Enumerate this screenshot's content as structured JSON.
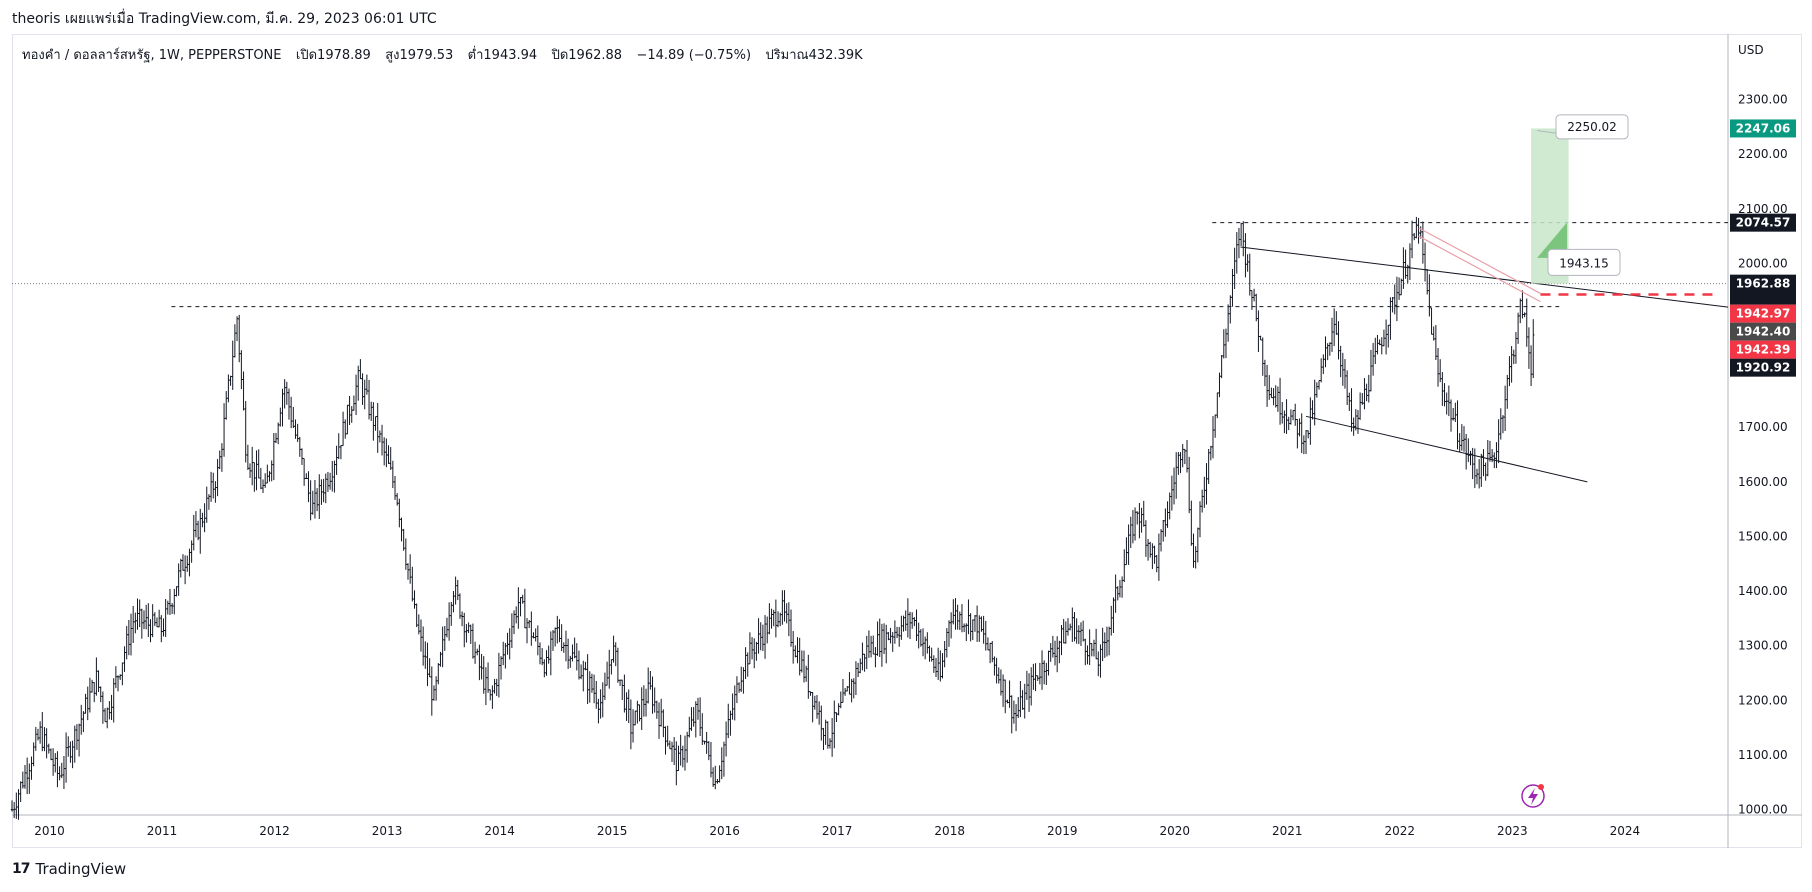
{
  "header": {
    "attribution": "theoris เผยแพร่เมื่อ TradingView.com, มี.ค. 29, 2023 06:01 UTC"
  },
  "legend": {
    "symbol": "ทองคำ / ดอลลาร์สหรัฐ, 1W, PEPPERSTONE",
    "open": "เปิด1978.89",
    "high": "สูง1979.53",
    "low": "ต่ำ1943.94",
    "close": "ปิด1962.88",
    "change": "−14.89 (−0.75%)",
    "volume": "ปริมาณ432.39K"
  },
  "footer": {
    "brand": "TradingView"
  },
  "colors": {
    "candle": "#131722",
    "target_box": "#c8e6c9",
    "resistance_line": "#131722",
    "red_dash": "#f23645",
    "green_tag": "#089981",
    "red_tag": "#f23645",
    "black_tag": "#131722",
    "gray_tag": "#4a4a4a"
  },
  "chart_data": {
    "type": "candlestick",
    "currency": "USD",
    "x_axis": {
      "type": "time",
      "range": [
        "2009-09",
        "2024-12"
      ],
      "ticks": [
        "2010",
        "2011",
        "2012",
        "2013",
        "2014",
        "2015",
        "2016",
        "2017",
        "2018",
        "2019",
        "2020",
        "2021",
        "2022",
        "2023",
        "2024"
      ]
    },
    "y_axis": {
      "range": [
        990,
        2420
      ],
      "ticks": [
        "1000.00",
        "1100.00",
        "1200.00",
        "1300.00",
        "1400.00",
        "1500.00",
        "1600.00",
        "1700.00",
        "1800.00",
        "1900.00",
        "2000.00",
        "2100.00",
        "2200.00",
        "2300.00"
      ]
    },
    "grid": false,
    "price_path": [
      [
        "2009-09",
        1000
      ],
      [
        "2009-12",
        1140
      ],
      [
        "2010-02",
        1060
      ],
      [
        "2010-06",
        1240
      ],
      [
        "2010-07",
        1170
      ],
      [
        "2010-10",
        1350
      ],
      [
        "2011-01",
        1330
      ],
      [
        "2011-03",
        1440
      ],
      [
        "2011-05",
        1520
      ],
      [
        "2011-07",
        1620
      ],
      [
        "2011-09",
        1900
      ],
      [
        "2011-10",
        1650
      ],
      [
        "2011-12",
        1580
      ],
      [
        "2012-02",
        1780
      ],
      [
        "2012-05",
        1550
      ],
      [
        "2012-07",
        1620
      ],
      [
        "2012-10",
        1790
      ],
      [
        "2012-12",
        1690
      ],
      [
        "2013-02",
        1580
      ],
      [
        "2013-04",
        1350
      ],
      [
        "2013-06",
        1200
      ],
      [
        "2013-08",
        1410
      ],
      [
        "2013-12",
        1200
      ],
      [
        "2014-03",
        1380
      ],
      [
        "2014-06",
        1260
      ],
      [
        "2014-07",
        1330
      ],
      [
        "2014-12",
        1190
      ],
      [
        "2015-01",
        1300
      ],
      [
        "2015-03",
        1150
      ],
      [
        "2015-05",
        1220
      ],
      [
        "2015-08",
        1080
      ],
      [
        "2015-10",
        1180
      ],
      [
        "2015-12",
        1050
      ],
      [
        "2016-03",
        1270
      ],
      [
        "2016-07",
        1370
      ],
      [
        "2016-12",
        1130
      ],
      [
        "2017-04",
        1290
      ],
      [
        "2017-09",
        1350
      ],
      [
        "2017-12",
        1240
      ],
      [
        "2018-01",
        1360
      ],
      [
        "2018-04",
        1340
      ],
      [
        "2018-08",
        1170
      ],
      [
        "2018-10",
        1240
      ],
      [
        "2019-02",
        1340
      ],
      [
        "2019-05",
        1270
      ],
      [
        "2019-09",
        1550
      ],
      [
        "2019-11",
        1450
      ],
      [
        "2020-02",
        1690
      ],
      [
        "2020-03",
        1450
      ],
      [
        "2020-08",
        2070
      ],
      [
        "2020-11",
        1770
      ],
      [
        "2021-03",
        1680
      ],
      [
        "2021-06",
        1900
      ],
      [
        "2021-08",
        1690
      ],
      [
        "2021-11",
        1860
      ],
      [
        "2022-03",
        2070
      ],
      [
        "2022-05",
        1800
      ],
      [
        "2022-07",
        1700
      ],
      [
        "2022-09",
        1620
      ],
      [
        "2022-11",
        1640
      ],
      [
        "2023-02",
        1930
      ],
      [
        "2023-03",
        1810
      ],
      [
        "2023-03-29",
        1962.88
      ]
    ],
    "annotations": {
      "horizontal_dashed": [
        {
          "from": "2011-02",
          "to": "2023-06",
          "value": 1920.92
        },
        {
          "from": "2020-05",
          "to": "2024-12",
          "value": 2074.57
        }
      ],
      "current_price_dotted": 1962.88,
      "trendlines": [
        {
          "from": [
            "2020-08",
            2030
          ],
          "to": [
            "2024-12",
            1920
          ],
          "label": "resistance"
        },
        {
          "from": [
            "2021-03",
            1720
          ],
          "to": [
            "2023-09",
            1600
          ],
          "label": "support"
        }
      ],
      "projection_box": {
        "from": "2023-03",
        "to": "2023-07",
        "low": 1962.88,
        "high": 2247.06
      },
      "callouts": [
        {
          "text": "2250.02"
        },
        {
          "text": "1943.15"
        }
      ],
      "red_dashed_level": 1942.97
    },
    "price_tags": [
      {
        "value": "2247.06",
        "style": "green"
      },
      {
        "value": "2074.57",
        "style": "black"
      },
      {
        "value": "1962.88",
        "sub": "2d 15h",
        "style": "black"
      },
      {
        "value": "1942.97",
        "style": "red"
      },
      {
        "value": "1942.40",
        "style": "gray"
      },
      {
        "value": "1942.39",
        "style": "red"
      },
      {
        "value": "1920.92",
        "style": "black"
      }
    ]
  }
}
